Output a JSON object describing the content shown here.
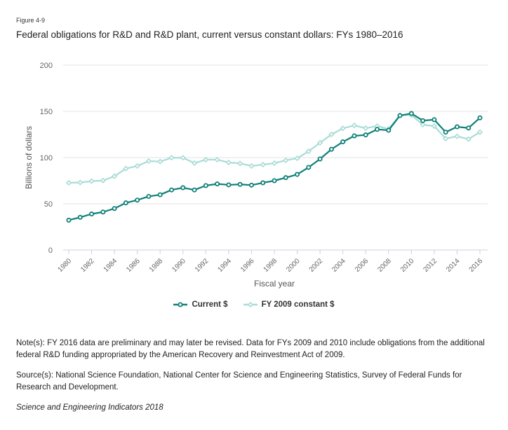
{
  "figure_label": "Figure 4-9",
  "title": "Federal obligations for R&D and R&D plant, current versus constant dollars: FYs 1980–2016",
  "notes": {
    "note": "Note(s): FY 2016 data are preliminary and may later be revised. Data for FYs 2009 and 2010 include obligations from the additional federal R&D funding appropriated by the American Recovery and Reinvestment Act of 2009.",
    "source": "Source(s): National Science Foundation, National Center for Science and Engineering Statistics, Survey of Federal Funds for Research and Development.",
    "credit": "Science and Engineering Indicators 2018"
  },
  "colors": {
    "current": "#0e8078",
    "constant": "#a9dcd6",
    "grid": "#e3e3e3",
    "axis": "#c8d0e0",
    "tick_text": "#666666"
  },
  "chart_data": {
    "type": "line",
    "title": "Federal obligations for R&D and R&D plant, current versus constant dollars: FYs 1980–2016",
    "xlabel": "Fiscal year",
    "ylabel": "Billions of dollars",
    "ylim": [
      0,
      200
    ],
    "yticks": [
      0,
      50,
      100,
      150,
      200
    ],
    "xlim": [
      1980,
      2016
    ],
    "xticks": [
      1980,
      1982,
      1984,
      1986,
      1988,
      1990,
      1992,
      1994,
      1996,
      1998,
      2000,
      2002,
      2004,
      2006,
      2008,
      2010,
      2012,
      2014,
      2016
    ],
    "grid": true,
    "legend": "bottom-center",
    "x": [
      1980,
      1981,
      1982,
      1983,
      1984,
      1985,
      1986,
      1987,
      1988,
      1989,
      1990,
      1991,
      1992,
      1993,
      1994,
      1995,
      1996,
      1997,
      1998,
      1999,
      2000,
      2001,
      2002,
      2003,
      2004,
      2005,
      2006,
      2007,
      2008,
      2009,
      2010,
      2011,
      2012,
      2013,
      2014,
      2015,
      2016
    ],
    "series": [
      {
        "name": "Current $",
        "marker": "circle",
        "values": [
          32.3,
          35.4,
          39.0,
          41.1,
          44.9,
          51.0,
          54.0,
          58.0,
          59.8,
          65.0,
          67.4,
          65.0,
          69.7,
          71.5,
          70.5,
          71.0,
          70.2,
          72.7,
          75.0,
          78.3,
          81.8,
          89.4,
          98.5,
          109.0,
          117.0,
          123.5,
          124.5,
          130.5,
          129.5,
          145.5,
          147.7,
          140.0,
          141.0,
          127.5,
          133.3,
          132.0,
          143.0
        ]
      },
      {
        "name": "FY 2009 constant $",
        "marker": "diamond",
        "values": [
          72.7,
          73.0,
          74.5,
          75.2,
          79.8,
          88.1,
          90.9,
          96.2,
          95.7,
          99.8,
          99.8,
          94.0,
          97.7,
          97.7,
          94.7,
          93.7,
          90.9,
          92.4,
          93.9,
          97.0,
          99.2,
          106.8,
          116.0,
          125.0,
          131.6,
          134.8,
          131.8,
          134.0,
          131.0,
          145.7,
          146.0,
          135.6,
          134.0,
          120.5,
          123.0,
          120.0,
          127.5
        ]
      }
    ]
  }
}
